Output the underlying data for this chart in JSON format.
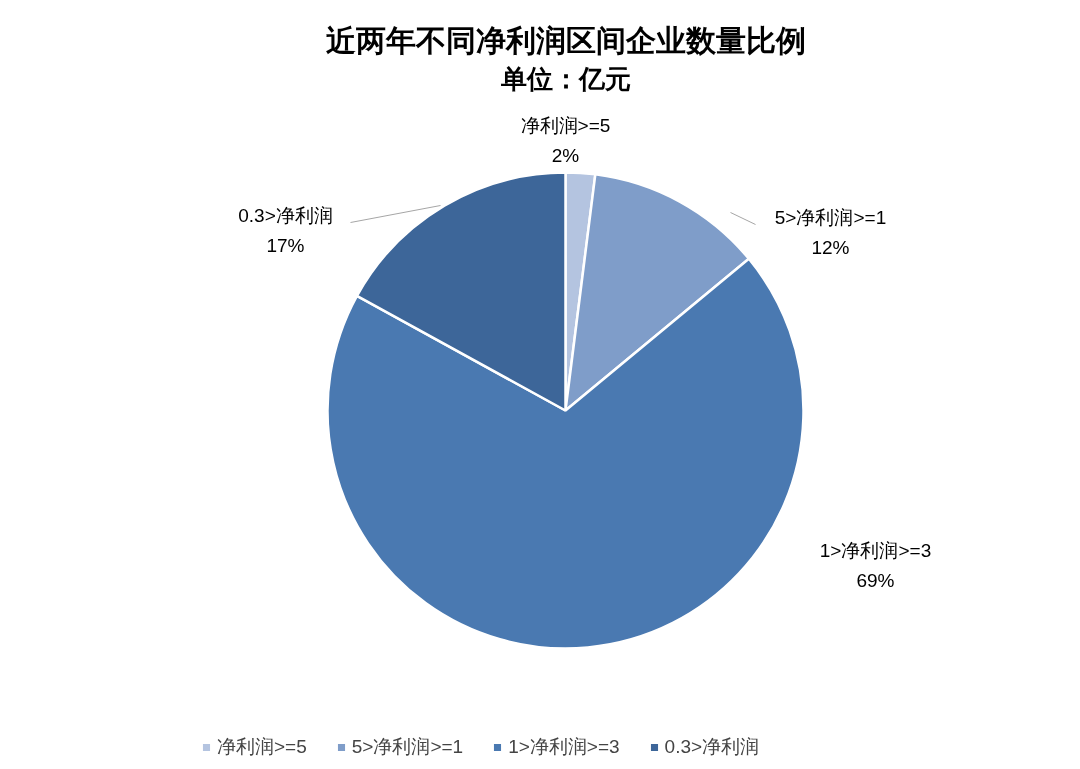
{
  "chart_data": {
    "type": "pie",
    "title": "近两年不同净利润区间企业数量比例",
    "subtitle": "单位：亿元",
    "categories": [
      "净利润>=5",
      "5>净利润>=1",
      "1>净利润>=3",
      "0.3>净利润"
    ],
    "values": [
      2,
      12,
      69,
      17
    ],
    "value_labels": [
      "2%",
      "12%",
      "69%",
      "17%"
    ],
    "colors": [
      "#b4c4e0",
      "#7f9dc9",
      "#4a79b1",
      "#3d6699"
    ],
    "legend": "bottom"
  }
}
